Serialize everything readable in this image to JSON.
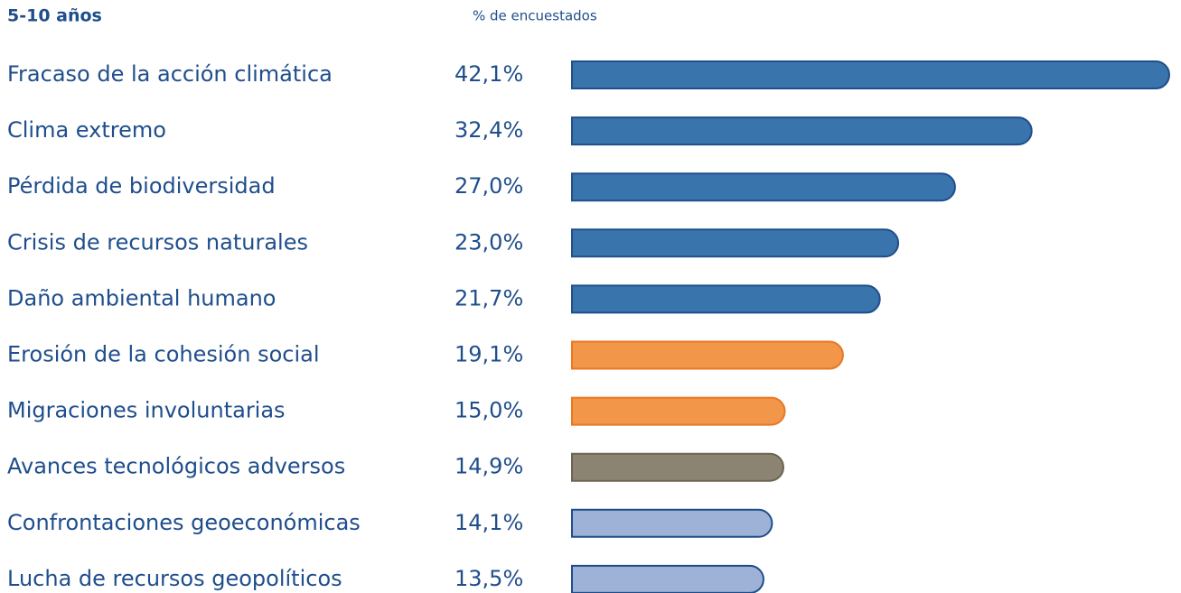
{
  "chart_data": {
    "type": "bar",
    "orientation": "horizontal",
    "title": "5-10 años",
    "subtitle": "% de encuestados",
    "categories": [
      "Fracaso de la acción climática",
      "Clima extremo",
      "Pérdida de biodiversidad",
      "Crisis de recursos naturales",
      "Daño ambiental humano",
      "Erosión de la cohesión social",
      "Migraciones involuntarias",
      "Avances tecnológicos adversos",
      "Confrontaciones geoeconómicas",
      "Lucha de recursos geopolíticos"
    ],
    "values": [
      42.1,
      32.4,
      27.0,
      23.0,
      21.7,
      19.1,
      15.0,
      14.9,
      14.1,
      13.5
    ],
    "value_labels": [
      "42,1%",
      "32,4%",
      "27,0%",
      "23,0%",
      "21,7%",
      "19,1%",
      "15,0%",
      "14,9%",
      "14,1%",
      "13,5%"
    ],
    "colors": [
      "#3a74ad",
      "#3a74ad",
      "#3a74ad",
      "#3a74ad",
      "#3a74ad",
      "#f2964a",
      "#f2964a",
      "#8c8472",
      "#9db2d6",
      "#9db2d6"
    ],
    "edge_colors": [
      "#1f4e8c",
      "#1f4e8c",
      "#1f4e8c",
      "#1f4e8c",
      "#1f4e8c",
      "#e87722",
      "#e87722",
      "#6b6350",
      "#1f4e8c",
      "#1f4e8c"
    ]
  }
}
